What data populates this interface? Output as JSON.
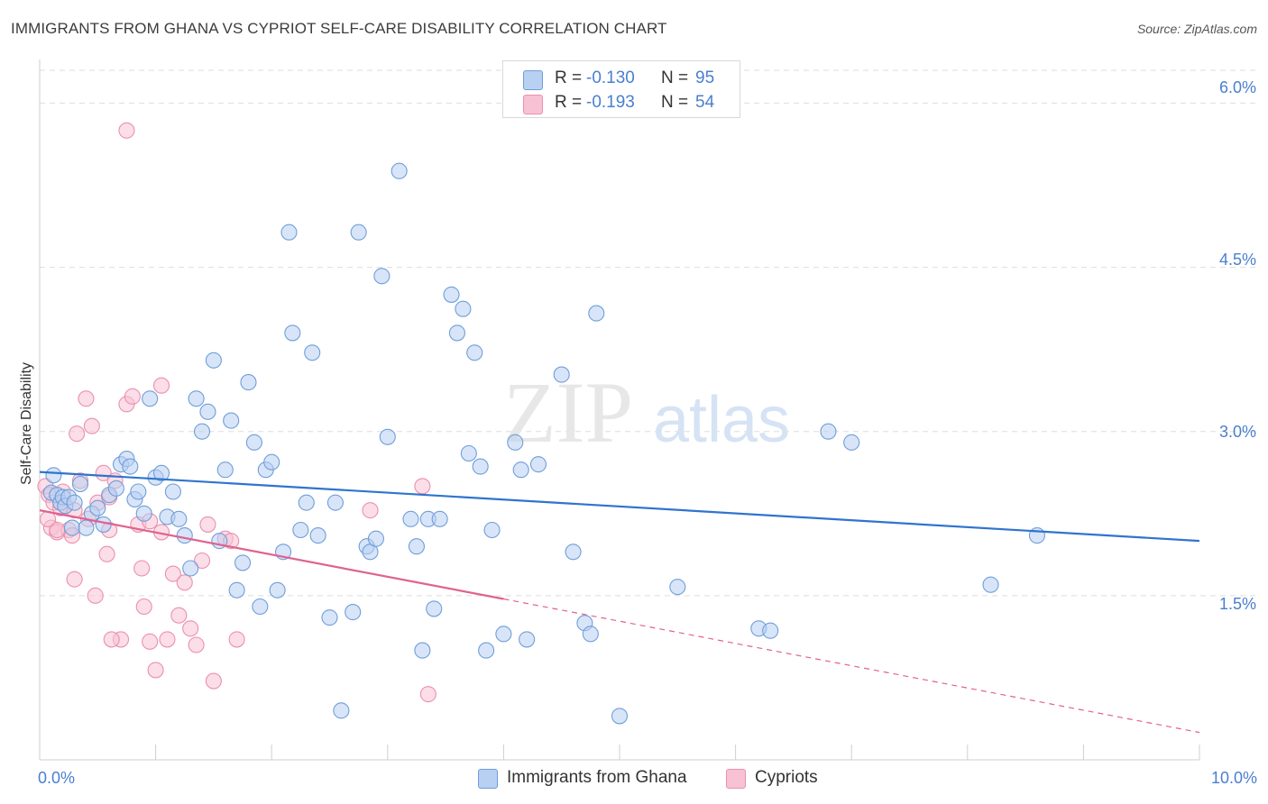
{
  "header": {
    "title": "IMMIGRANTS FROM GHANA VS CYPRIOT SELF-CARE DISABILITY CORRELATION CHART",
    "source": "Source: ZipAtlas.com"
  },
  "watermark": {
    "zip": "ZIP",
    "atlas": "atlas"
  },
  "legend": {
    "rows": [
      {
        "r_label": "R =",
        "r_value": "-0.130",
        "n_label": "N =",
        "n_value": "95"
      },
      {
        "r_label": "R =",
        "r_value": "-0.193",
        "n_label": "N =",
        "n_value": "54"
      }
    ],
    "series_labels": [
      "Immigrants from Ghana",
      "Cypriots"
    ]
  },
  "colors": {
    "blue_fill": "#b8d0f2",
    "blue_stroke": "#6f9ed9",
    "blue_line": "#2f74cf",
    "pink_fill": "#f7c2d3",
    "pink_stroke": "#ec8fae",
    "pink_line": "#e0628f",
    "grid": "#dedede",
    "tick_text": "#4a7fd0"
  },
  "chart_data": {
    "type": "scatter",
    "title": "IMMIGRANTS FROM GHANA VS CYPRIOT SELF-CARE DISABILITY CORRELATION CHART",
    "xlabel": "",
    "ylabel": "Self-Care Disability",
    "xlim": [
      0,
      10
    ],
    "ylim": [
      0,
      6.3
    ],
    "x_tick_labels": [
      "0.0%",
      "10.0%"
    ],
    "y_ticks": [
      1.5,
      3.0,
      4.5,
      6.0
    ],
    "y_tick_labels": [
      "1.5%",
      "3.0%",
      "4.5%",
      "6.0%"
    ],
    "series": [
      {
        "name": "Immigrants from Ghana",
        "r": -0.13,
        "n": 95,
        "trend": {
          "x": [
            0,
            10
          ],
          "y": [
            2.63,
            2.0
          ]
        },
        "points": [
          [
            0.1,
            2.44
          ],
          [
            0.15,
            2.42
          ],
          [
            0.18,
            2.35
          ],
          [
            0.2,
            2.4
          ],
          [
            0.22,
            2.32
          ],
          [
            0.25,
            2.4
          ],
          [
            0.28,
            2.12
          ],
          [
            0.35,
            2.52
          ],
          [
            0.4,
            2.12
          ],
          [
            0.45,
            2.25
          ],
          [
            0.5,
            2.3
          ],
          [
            0.55,
            2.15
          ],
          [
            0.6,
            2.42
          ],
          [
            0.66,
            2.48
          ],
          [
            0.7,
            2.7
          ],
          [
            0.75,
            2.75
          ],
          [
            0.78,
            2.68
          ],
          [
            0.82,
            2.38
          ],
          [
            0.85,
            2.45
          ],
          [
            0.9,
            2.25
          ],
          [
            0.95,
            3.3
          ],
          [
            1.0,
            2.58
          ],
          [
            1.05,
            2.62
          ],
          [
            1.1,
            2.22
          ],
          [
            1.15,
            2.45
          ],
          [
            1.2,
            2.2
          ],
          [
            1.25,
            2.05
          ],
          [
            1.3,
            1.75
          ],
          [
            1.35,
            3.3
          ],
          [
            1.4,
            3.0
          ],
          [
            1.45,
            3.18
          ],
          [
            1.5,
            3.65
          ],
          [
            1.55,
            2.0
          ],
          [
            1.6,
            2.65
          ],
          [
            1.65,
            3.1
          ],
          [
            1.7,
            1.55
          ],
          [
            1.75,
            1.8
          ],
          [
            1.8,
            3.45
          ],
          [
            1.85,
            2.9
          ],
          [
            1.9,
            1.4
          ],
          [
            1.95,
            2.65
          ],
          [
            2.0,
            2.72
          ],
          [
            2.05,
            1.55
          ],
          [
            2.1,
            1.9
          ],
          [
            2.15,
            4.82
          ],
          [
            2.18,
            3.9
          ],
          [
            2.25,
            2.1
          ],
          [
            2.3,
            2.35
          ],
          [
            2.35,
            3.72
          ],
          [
            2.4,
            2.05
          ],
          [
            2.5,
            1.3
          ],
          [
            2.55,
            2.35
          ],
          [
            2.6,
            0.45
          ],
          [
            2.7,
            1.35
          ],
          [
            2.75,
            4.82
          ],
          [
            2.82,
            1.95
          ],
          [
            2.85,
            1.9
          ],
          [
            2.9,
            2.02
          ],
          [
            2.95,
            4.42
          ],
          [
            3.0,
            2.95
          ],
          [
            3.1,
            5.38
          ],
          [
            3.2,
            2.2
          ],
          [
            3.25,
            1.95
          ],
          [
            3.3,
            1.0
          ],
          [
            3.35,
            2.2
          ],
          [
            3.4,
            1.38
          ],
          [
            3.45,
            2.2
          ],
          [
            3.55,
            4.25
          ],
          [
            3.6,
            3.9
          ],
          [
            3.65,
            4.12
          ],
          [
            3.7,
            2.8
          ],
          [
            3.75,
            3.72
          ],
          [
            3.8,
            2.68
          ],
          [
            3.85,
            1.0
          ],
          [
            3.9,
            2.1
          ],
          [
            4.0,
            1.15
          ],
          [
            4.1,
            2.9
          ],
          [
            4.15,
            2.65
          ],
          [
            4.2,
            1.1
          ],
          [
            4.3,
            2.7
          ],
          [
            4.5,
            3.52
          ],
          [
            4.6,
            1.9
          ],
          [
            4.7,
            1.25
          ],
          [
            4.75,
            1.15
          ],
          [
            4.8,
            4.08
          ],
          [
            5.0,
            0.4
          ],
          [
            5.5,
            1.58
          ],
          [
            6.2,
            1.2
          ],
          [
            6.3,
            1.18
          ],
          [
            6.8,
            3.0
          ],
          [
            7.0,
            2.9
          ],
          [
            8.2,
            1.6
          ],
          [
            8.6,
            2.05
          ],
          [
            0.3,
            2.35
          ],
          [
            0.12,
            2.6
          ]
        ]
      },
      {
        "name": "Cypriots",
        "r": -0.193,
        "n": 54,
        "trend": {
          "x": [
            0,
            4.0
          ],
          "y": [
            2.28,
            1.47
          ]
        },
        "trend_dashed": {
          "x": [
            4.0,
            10
          ],
          "y": [
            1.47,
            0.25
          ]
        },
        "points": [
          [
            0.05,
            2.5
          ],
          [
            0.08,
            2.42
          ],
          [
            0.1,
            2.12
          ],
          [
            0.12,
            2.35
          ],
          [
            0.15,
            2.08
          ],
          [
            0.18,
            2.3
          ],
          [
            0.2,
            2.45
          ],
          [
            0.22,
            2.32
          ],
          [
            0.25,
            2.1
          ],
          [
            0.28,
            2.05
          ],
          [
            0.3,
            1.65
          ],
          [
            0.32,
            2.98
          ],
          [
            0.35,
            2.55
          ],
          [
            0.4,
            3.3
          ],
          [
            0.42,
            2.2
          ],
          [
            0.45,
            3.05
          ],
          [
            0.48,
            1.5
          ],
          [
            0.5,
            2.35
          ],
          [
            0.55,
            2.62
          ],
          [
            0.58,
            1.88
          ],
          [
            0.6,
            2.4
          ],
          [
            0.65,
            2.55
          ],
          [
            0.7,
            1.1
          ],
          [
            0.75,
            3.25
          ],
          [
            0.8,
            3.32
          ],
          [
            0.85,
            2.15
          ],
          [
            0.88,
            1.75
          ],
          [
            0.9,
            1.4
          ],
          [
            0.95,
            1.08
          ],
          [
            1.0,
            0.82
          ],
          [
            1.05,
            3.42
          ],
          [
            1.1,
            1.1
          ],
          [
            1.15,
            1.7
          ],
          [
            1.2,
            1.32
          ],
          [
            1.25,
            1.62
          ],
          [
            1.3,
            1.2
          ],
          [
            1.35,
            1.05
          ],
          [
            1.4,
            1.82
          ],
          [
            1.45,
            2.15
          ],
          [
            1.5,
            0.72
          ],
          [
            1.6,
            2.02
          ],
          [
            1.65,
            2.0
          ],
          [
            1.7,
            1.1
          ],
          [
            1.05,
            2.08
          ],
          [
            0.95,
            2.18
          ],
          [
            0.6,
            2.1
          ],
          [
            0.3,
            2.28
          ],
          [
            0.15,
            2.1
          ],
          [
            0.07,
            2.2
          ],
          [
            2.85,
            2.28
          ],
          [
            3.3,
            2.5
          ],
          [
            3.35,
            0.6
          ],
          [
            0.62,
            1.1
          ],
          [
            0.75,
            5.75
          ]
        ]
      }
    ]
  }
}
